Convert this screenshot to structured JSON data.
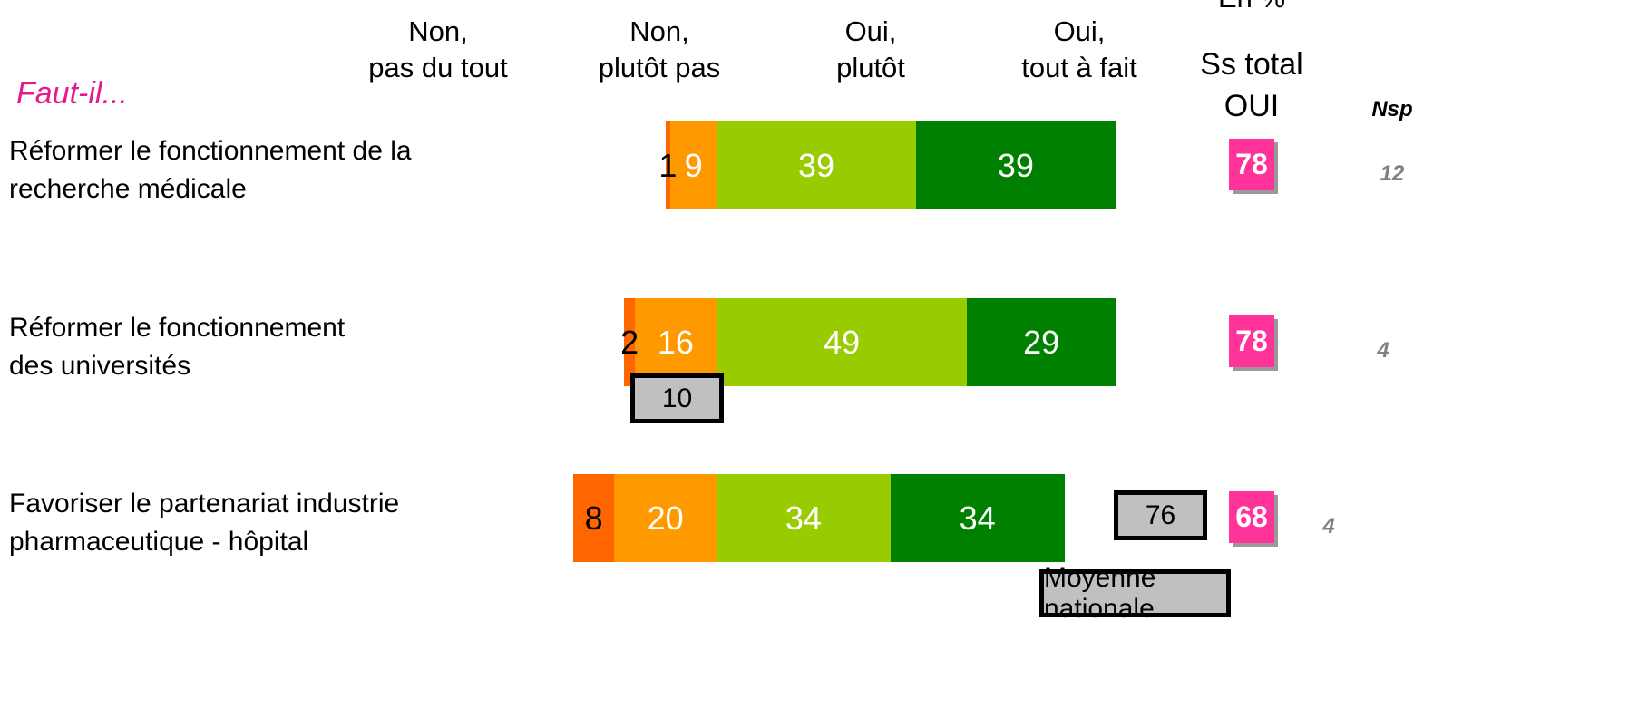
{
  "chart_data": {
    "type": "bar",
    "stacked": true,
    "diverging": true,
    "unit_note": "En %",
    "prompt": "Faut-il...",
    "categories": [
      "Réformer le fonctionnement de la\nrecherche médicale",
      "Réformer le fonctionnement\ndes universités",
      "Favoriser le partenariat industrie\npharmaceutique - hôpital"
    ],
    "series": [
      {
        "name": "Non,\npas du tout",
        "color": "#ff6600",
        "label_color": "#000000",
        "side": "left",
        "values": [
          1,
          2,
          8
        ]
      },
      {
        "name": "Non,\nplutôt pas",
        "color": "#ff9900",
        "label_color": "#ffffff",
        "side": "left",
        "values": [
          9,
          16,
          20
        ]
      },
      {
        "name": "Oui,\nplutôt",
        "color": "#99cc00",
        "label_color": "#ffffff",
        "side": "right",
        "values": [
          39,
          49,
          34
        ]
      },
      {
        "name": "Oui,\ntout à fait",
        "color": "#008000",
        "label_color": "#ffffff",
        "side": "right",
        "values": [
          39,
          29,
          34
        ]
      }
    ],
    "subtotal": {
      "label": "Ss total\nOUI",
      "color": "#ff3399",
      "values": [
        78,
        78,
        68
      ]
    },
    "nsp": {
      "label": "Nsp",
      "color": "#808080",
      "values": [
        12,
        4,
        4
      ]
    },
    "national_average": {
      "label": "Moyenne nationale",
      "color": "#c0c0c0",
      "values": [
        null,
        10,
        76
      ]
    }
  }
}
